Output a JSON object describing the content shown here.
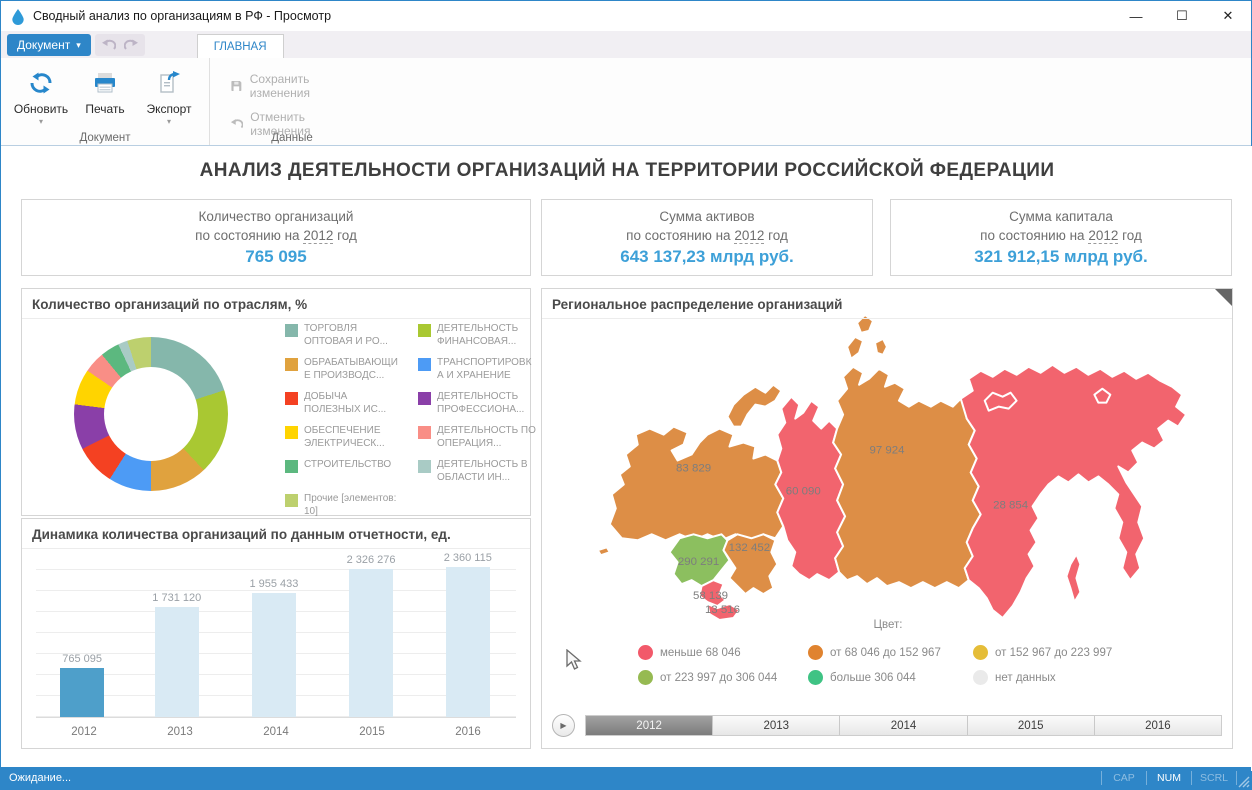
{
  "window": {
    "title": "Сводный анализ по организациям в РФ - Просмотр"
  },
  "ribbon": {
    "document_button": "Документ",
    "tab": "ГЛАВНАЯ",
    "doc_group": {
      "label": "Документ",
      "refresh": "Обновить",
      "print": "Печать",
      "export": "Экспорт"
    },
    "data_group": {
      "label": "Данные",
      "save": "Сохранить изменения",
      "undo": "Отменить изменения"
    }
  },
  "page_title": "АНАЛИЗ ДЕЯТЕЛЬНОСТИ ОРГАНИЗАЦИЙ НА ТЕРРИТОРИИ РОССИЙСКОЙ ФЕДЕРАЦИИ",
  "kpi_cards": [
    {
      "title": "Количество организаций",
      "prefix": "по состоянию на",
      "year": "2012",
      "suffix": "год",
      "value": "765 095"
    },
    {
      "title": "Сумма активов",
      "prefix": "по состоянию на",
      "year": "2012",
      "suffix": "год",
      "value": "643 137,23 млрд руб."
    },
    {
      "title": "Сумма капитала",
      "prefix": "по состоянию на",
      "year": "2012",
      "suffix": "год",
      "value": "321 912,15 млрд руб."
    }
  ],
  "donut_panel": {
    "title": "Количество организаций по отраслям, %",
    "chart_data": {
      "type": "pie",
      "slices": [
        {
          "label": "ТОРГОВЛЯ ОПТОВАЯ И РО...",
          "value": 20,
          "color": "#85b7ab"
        },
        {
          "label": "ДЕЯТЕЛЬНОСТЬ ФИНАНСОВАЯ...",
          "value": 18,
          "color": "#a9c832"
        },
        {
          "label": "ОБРАБАТЫВАЮЩИЕ ПРОИЗВОДС...",
          "value": 12,
          "color": "#e0a23e"
        },
        {
          "label": "ТРАНСПОРТИРОВКА И ХРАНЕНИЕ",
          "value": 9,
          "color": "#4d9bf5"
        },
        {
          "label": "ДОБЫЧА ПОЛЕЗНЫХ ИС...",
          "value": 8.5,
          "color": "#f44122"
        },
        {
          "label": "ДЕЯТЕЛЬНОСТЬ ПРОФЕССИОНА...",
          "value": 9.5,
          "color": "#8a3fa8"
        },
        {
          "label": "ОБЕСПЕЧЕНИЕ ЭЛЕКТРИЧЕСК...",
          "value": 7.5,
          "color": "#ffd400"
        },
        {
          "label": "ДЕЯТЕЛЬНОСТЬ ПО ОПЕРАЦИЯ...",
          "value": 4.5,
          "color": "#f98e86"
        },
        {
          "label": "СТРОИТЕЛЬСТВО",
          "value": 4,
          "color": "#5cb87f"
        },
        {
          "label": "ДЕЯТЕЛЬНОСТЬ В ОБЛАСТИ ИН...",
          "value": 2,
          "color": "#a9cbc5"
        },
        {
          "label": "Прочие [элементов: 10]",
          "value": 5,
          "color": "#bdd06e"
        }
      ],
      "legend_order": [
        0,
        2,
        4,
        6,
        8,
        10,
        1,
        3,
        5,
        7,
        9
      ]
    }
  },
  "bar_panel": {
    "title": "Динамика количества организаций по данным отчетности, ед.",
    "chart_data": {
      "type": "bar",
      "categories": [
        "2012",
        "2013",
        "2014",
        "2015",
        "2016"
      ],
      "values": [
        765095,
        1731120,
        1955433,
        2326276,
        2360115
      ],
      "value_labels": [
        "765 095",
        "1 731 120",
        "1 955 433",
        "2 326 276",
        "2 360 115"
      ],
      "highlight_index": 0,
      "bar_color": "#d9eaf4",
      "bar_color_highlight": "#4e9fca",
      "grid": true
    }
  },
  "map_panel": {
    "title": "Региональное распределение организаций",
    "regions": [
      {
        "id": "northwest",
        "value_label": "83 829",
        "color": "#dd8e46"
      },
      {
        "id": "ural",
        "value_label": "60 090",
        "color": "#f2646e"
      },
      {
        "id": "siberia",
        "value_label": "97 924",
        "color": "#dd8e46"
      },
      {
        "id": "fareast",
        "value_label": "28 854",
        "color": "#f2646e"
      },
      {
        "id": "central",
        "value_label": "290 291",
        "color": "#8cbf5f"
      },
      {
        "id": "volga",
        "value_label": "132 452",
        "color": "#dd8e46"
      },
      {
        "id": "south",
        "value_label": "58 139",
        "color": "#f2646e"
      },
      {
        "id": "caucasus",
        "value_label": "13 516",
        "color": "#f2646e"
      }
    ],
    "legend_title": "Цвет:",
    "legend": [
      {
        "label": "меньше 68 046",
        "color": "#f2596a"
      },
      {
        "label": "от 68 046 до 152 967",
        "color": "#e0832f"
      },
      {
        "label": "от 152 967 до 223 997",
        "color": "#e5bd38"
      },
      {
        "label": "от 223 997 до 306 044",
        "color": "#96ba52"
      },
      {
        "label": "больше 306 044",
        "color": "#3fc384"
      },
      {
        "label": "нет данных",
        "color": "#eaeaea"
      }
    ],
    "timeline": {
      "years": [
        "2012",
        "2013",
        "2014",
        "2015",
        "2016"
      ],
      "selected": "2012"
    }
  },
  "status_bar": {
    "text": "Ожидание...",
    "indicators": [
      {
        "label": "CAP",
        "active": false
      },
      {
        "label": "NUM",
        "active": true
      },
      {
        "label": "SCRL",
        "active": false
      }
    ]
  }
}
